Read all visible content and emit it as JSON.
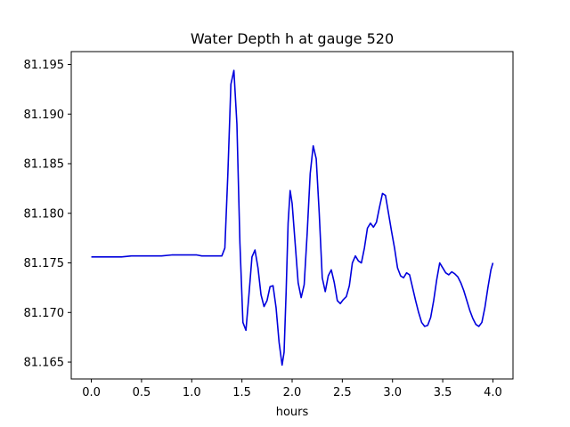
{
  "chart_data": {
    "type": "line",
    "title": "Water Depth h at gauge 520",
    "xlabel": "hours",
    "ylabel": "",
    "xlim": [
      -0.2,
      4.2
    ],
    "ylim": [
      81.1633,
      81.1963
    ],
    "grid": false,
    "x_ticks": [
      0.0,
      0.5,
      1.0,
      1.5,
      2.0,
      2.5,
      3.0,
      3.5,
      4.0
    ],
    "x_tick_labels": [
      "0.0",
      "0.5",
      "1.0",
      "1.5",
      "2.0",
      "2.5",
      "3.0",
      "3.5",
      "4.0"
    ],
    "y_ticks": [
      81.165,
      81.17,
      81.175,
      81.18,
      81.185,
      81.19,
      81.195
    ],
    "y_tick_labels": [
      "81.165",
      "81.170",
      "81.175",
      "81.180",
      "81.185",
      "81.190",
      "81.195"
    ],
    "series": [
      {
        "color": "#0000dd",
        "x": [
          0.0,
          0.1,
          0.2,
          0.3,
          0.4,
          0.5,
          0.6,
          0.7,
          0.8,
          0.9,
          1.0,
          1.05,
          1.1,
          1.2,
          1.3,
          1.33,
          1.36,
          1.39,
          1.42,
          1.45,
          1.48,
          1.51,
          1.54,
          1.57,
          1.6,
          1.63,
          1.66,
          1.69,
          1.72,
          1.75,
          1.78,
          1.81,
          1.84,
          1.87,
          1.9,
          1.92,
          1.94,
          1.96,
          1.98,
          2.0,
          2.03,
          2.06,
          2.09,
          2.12,
          2.15,
          2.18,
          2.21,
          2.24,
          2.27,
          2.3,
          2.33,
          2.36,
          2.39,
          2.42,
          2.45,
          2.48,
          2.51,
          2.54,
          2.57,
          2.6,
          2.63,
          2.66,
          2.69,
          2.72,
          2.75,
          2.78,
          2.81,
          2.84,
          2.87,
          2.9,
          2.93,
          2.96,
          2.99,
          3.02,
          3.05,
          3.08,
          3.11,
          3.14,
          3.17,
          3.2,
          3.23,
          3.26,
          3.29,
          3.32,
          3.35,
          3.38,
          3.41,
          3.44,
          3.47,
          3.5,
          3.53,
          3.56,
          3.59,
          3.62,
          3.65,
          3.68,
          3.71,
          3.74,
          3.77,
          3.8,
          3.83,
          3.86,
          3.89,
          3.92,
          3.95,
          3.98,
          4.0
        ],
        "y": [
          81.1756,
          81.1756,
          81.1756,
          81.1756,
          81.1757,
          81.1757,
          81.1757,
          81.1757,
          81.1758,
          81.1758,
          81.1758,
          81.1758,
          81.1757,
          81.1757,
          81.1757,
          81.1765,
          81.184,
          81.193,
          81.1944,
          81.189,
          81.177,
          81.169,
          81.1682,
          81.1718,
          81.1756,
          81.1763,
          81.1745,
          81.1718,
          81.1706,
          81.1712,
          81.1726,
          81.1727,
          81.1705,
          81.167,
          81.1647,
          81.166,
          81.172,
          81.179,
          81.1823,
          81.181,
          81.177,
          81.173,
          81.1715,
          81.1728,
          81.178,
          81.184,
          81.1868,
          81.1855,
          81.18,
          81.1735,
          81.1721,
          81.1737,
          81.1743,
          81.173,
          81.1712,
          81.1709,
          81.1713,
          81.1716,
          81.1727,
          81.175,
          81.1757,
          81.1752,
          81.175,
          81.1765,
          81.1785,
          81.179,
          81.1786,
          81.1791,
          81.1806,
          81.182,
          81.1818,
          81.18,
          81.1782,
          81.1765,
          81.1745,
          81.1737,
          81.1735,
          81.174,
          81.1738,
          81.1725,
          81.1712,
          81.17,
          81.169,
          81.1686,
          81.1687,
          81.1695,
          81.1712,
          81.1733,
          81.175,
          81.1745,
          81.174,
          81.1738,
          81.1741,
          81.1739,
          81.1736,
          81.173,
          81.1722,
          81.1712,
          81.1702,
          81.1694,
          81.1688,
          81.1686,
          81.169,
          81.1705,
          81.1725,
          81.1743,
          81.175
        ]
      }
    ]
  }
}
